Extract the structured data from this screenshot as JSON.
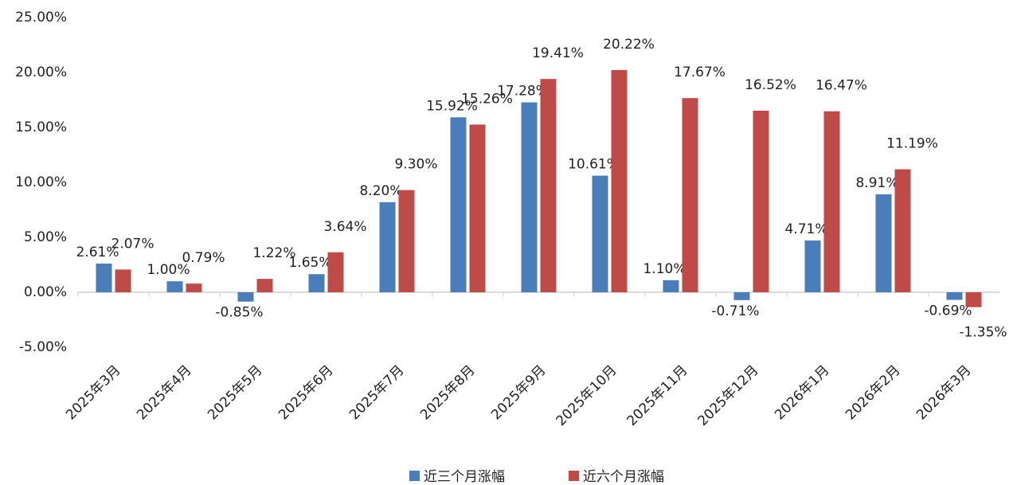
{
  "chart_data": {
    "type": "bar",
    "categories": [
      "2025年3月",
      "2025年4月",
      "2025年5月",
      "2025年6月",
      "2025年7月",
      "2025年8月",
      "2025年9月",
      "2025年10月",
      "2025年11月",
      "2025年12月",
      "2026年1月",
      "2026年2月",
      "2026年3月"
    ],
    "series": [
      {
        "name": "近三个月涨幅",
        "color": "#4a7ebb",
        "values": [
          2.61,
          1.0,
          -0.85,
          1.65,
          8.2,
          15.92,
          17.28,
          10.61,
          1.1,
          -0.71,
          4.71,
          8.91,
          -0.69
        ],
        "value_labels": [
          "2.61%",
          "1.00%",
          "-0.85%",
          "1.65%",
          "8.20%",
          "15.92%",
          "17.28%",
          "10.61%",
          "1.10%",
          "-0.71%",
          "4.71%",
          "8.91%",
          "-0.69%"
        ]
      },
      {
        "name": "近六个月涨幅",
        "color": "#be4b48",
        "values": [
          2.07,
          0.79,
          1.22,
          3.64,
          9.3,
          15.26,
          19.41,
          20.22,
          17.67,
          16.52,
          16.47,
          11.19,
          -1.35
        ],
        "value_labels": [
          "2.07%",
          "0.79%",
          "1.22%",
          "3.64%",
          "9.30%",
          "15.26%",
          "19.41%",
          "20.22%",
          "17.67%",
          "16.52%",
          "16.47%",
          "11.19%",
          "-1.35%"
        ]
      }
    ],
    "ylim": [
      -5,
      25
    ],
    "yticks": [
      {
        "value": -5,
        "label": "-5.00%"
      },
      {
        "value": 0,
        "label": "0.00%"
      },
      {
        "value": 5,
        "label": "5.00%"
      },
      {
        "value": 10,
        "label": "10.00%"
      },
      {
        "value": 15,
        "label": "15.00%"
      },
      {
        "value": 20,
        "label": "20.00%"
      },
      {
        "value": 25,
        "label": "25.00%"
      }
    ]
  }
}
